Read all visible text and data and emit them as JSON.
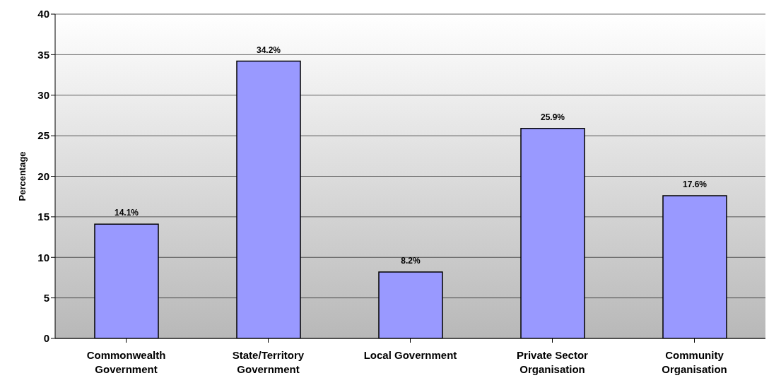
{
  "chart_data": {
    "type": "bar",
    "ylabel": "Percentage",
    "categories": [
      "Commonwealth Government",
      "State/Territory Government",
      "Local Government",
      "Private Sector Organisation",
      "Community Organisation"
    ],
    "values": [
      14.1,
      34.2,
      8.2,
      25.9,
      17.6
    ],
    "value_labels": [
      "14.1%",
      "34.2%",
      "8.2%",
      "25.9%",
      "17.6%"
    ],
    "color": "#9999ff",
    "ylim": [
      0,
      40
    ],
    "yticks": [
      0,
      5,
      10,
      15,
      20,
      25,
      30,
      35,
      40
    ],
    "grid": "y"
  }
}
